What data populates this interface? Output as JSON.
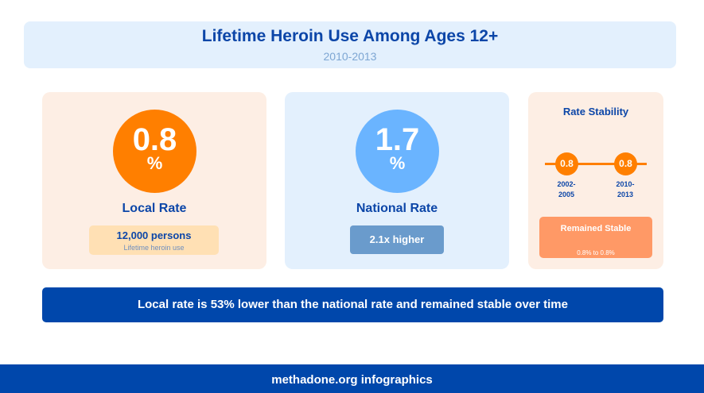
{
  "header": {
    "title": "Lifetime Heroin Use Among Ages 12+",
    "subtitle": "2010-2013"
  },
  "local": {
    "value": "0.8",
    "unit": "%",
    "label": "Local Rate",
    "persons_count": "12,000 persons",
    "persons_note": "Lifetime heroin use",
    "color": "#ff7f00"
  },
  "national": {
    "value": "1.7",
    "unit": "%",
    "label": "National Rate",
    "comparison": "2.1x higher",
    "color": "#6ab4ff"
  },
  "stability": {
    "title": "Rate Stability",
    "points": [
      {
        "value": "0.8",
        "period_line1": "2002-",
        "period_line2": "2005"
      },
      {
        "value": "0.8",
        "period_line1": "2010-",
        "period_line2": "2013"
      }
    ],
    "status": "Remained Stable",
    "range": "0.8% to 0.8%"
  },
  "summary": "Local rate is 53% lower than the national rate and remained stable over time",
  "footer": "methadone.org infographics",
  "colors": {
    "primary": "#0047ab",
    "title": "#0c46a8",
    "orange": "#ff7f00",
    "light_blue": "#6ab4ff",
    "stable_badge": "#ff9966"
  }
}
